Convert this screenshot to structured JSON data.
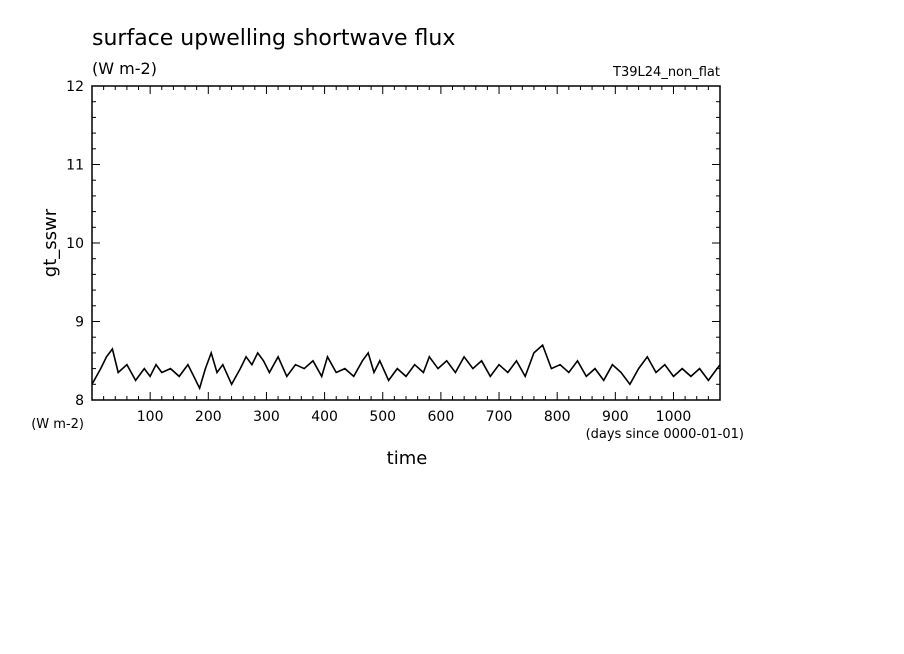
{
  "header": {
    "title": "surface upwelling shortwave flux",
    "units": "(W m-2)",
    "run_name": "T39L24_non_flat"
  },
  "axes": {
    "xlabel": "time",
    "x_units": "(days since 0000-01-01)",
    "ylabel": "gt_sswr",
    "y_units": "(W m-2)"
  },
  "chart_data": {
    "type": "line",
    "title": "surface upwelling shortwave flux",
    "xlabel": "time",
    "ylabel": "gt_sswr",
    "xlim": [
      0,
      1080
    ],
    "ylim": [
      8,
      12
    ],
    "x_ticks": [
      100,
      200,
      300,
      400,
      500,
      600,
      700,
      800,
      900,
      1000
    ],
    "y_ticks": [
      8,
      9,
      10,
      11,
      12
    ],
    "x_tick_labels": [
      "100",
      "200",
      "300",
      "400",
      "500",
      "600",
      "700",
      "800",
      "900",
      "1000"
    ],
    "y_tick_labels": [
      "8",
      "9",
      "10",
      "11",
      "12"
    ],
    "grid": false,
    "series": [
      {
        "x": [
          0,
          15,
          25,
          35,
          45,
          60,
          75,
          90,
          100,
          110,
          120,
          135,
          150,
          165,
          175,
          185,
          195,
          205,
          215,
          225,
          240,
          255,
          265,
          275,
          285,
          295,
          305,
          320,
          335,
          350,
          365,
          380,
          395,
          405,
          420,
          435,
          450,
          465,
          475,
          485,
          495,
          510,
          525,
          540,
          555,
          570,
          580,
          595,
          610,
          625,
          640,
          655,
          670,
          685,
          700,
          715,
          730,
          745,
          760,
          775,
          790,
          805,
          820,
          835,
          850,
          865,
          880,
          895,
          910,
          925,
          940,
          955,
          970,
          985,
          1000,
          1015,
          1030,
          1045,
          1060,
          1070,
          1080
        ],
        "y": [
          8.2,
          8.4,
          8.55,
          8.65,
          8.35,
          8.45,
          8.25,
          8.4,
          8.3,
          8.45,
          8.35,
          8.4,
          8.3,
          8.45,
          8.3,
          8.15,
          8.4,
          8.6,
          8.35,
          8.45,
          8.2,
          8.4,
          8.55,
          8.45,
          8.6,
          8.5,
          8.35,
          8.55,
          8.3,
          8.45,
          8.4,
          8.5,
          8.3,
          8.55,
          8.35,
          8.4,
          8.3,
          8.5,
          8.6,
          8.35,
          8.5,
          8.25,
          8.4,
          8.3,
          8.45,
          8.35,
          8.55,
          8.4,
          8.5,
          8.35,
          8.55,
          8.4,
          8.5,
          8.3,
          8.45,
          8.35,
          8.5,
          8.3,
          8.6,
          8.7,
          8.4,
          8.45,
          8.35,
          8.5,
          8.3,
          8.4,
          8.25,
          8.45,
          8.35,
          8.2,
          8.4,
          8.55,
          8.35,
          8.45,
          8.3,
          8.4,
          8.3,
          8.4,
          8.25,
          8.35,
          8.45
        ]
      }
    ]
  }
}
